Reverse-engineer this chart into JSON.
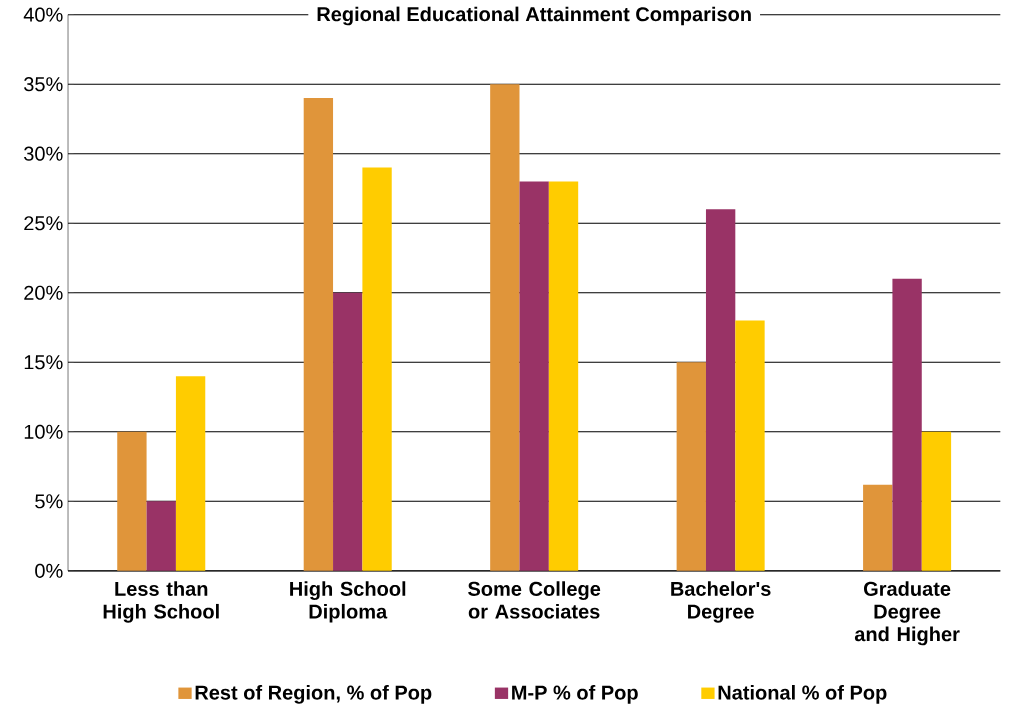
{
  "chart_data": {
    "type": "bar",
    "title": "Regional Educational Attainment Comparison",
    "categories": [
      "Less than High School",
      "High School Diploma",
      "Some College or Associates",
      "Bachelor's Degree",
      "Graduate Degree and Higher"
    ],
    "series": [
      {
        "name": "Rest of Region, % of Pop",
        "color": "#e0953a",
        "values": [
          10,
          34,
          35,
          15,
          6.2
        ]
      },
      {
        "name": "M-P % of Pop",
        "color": "#993366",
        "values": [
          5,
          20,
          28,
          26,
          21
        ]
      },
      {
        "name": "National % of Pop",
        "color": "#ffcc00",
        "values": [
          14,
          29,
          28,
          18,
          10
        ]
      }
    ],
    "ylim": [
      0,
      40
    ],
    "yticks": [
      {
        "value": 0,
        "label": "0%"
      },
      {
        "value": 5,
        "label": "5%"
      },
      {
        "value": 10,
        "label": "10%"
      },
      {
        "value": 15,
        "label": "15%"
      },
      {
        "value": 20,
        "label": "20%"
      },
      {
        "value": 25,
        "label": "25%"
      },
      {
        "value": 30,
        "label": "30%"
      },
      {
        "value": 35,
        "label": "35%"
      },
      {
        "value": 40,
        "label": "40%"
      }
    ],
    "grid": "y",
    "legend": "bottom"
  }
}
